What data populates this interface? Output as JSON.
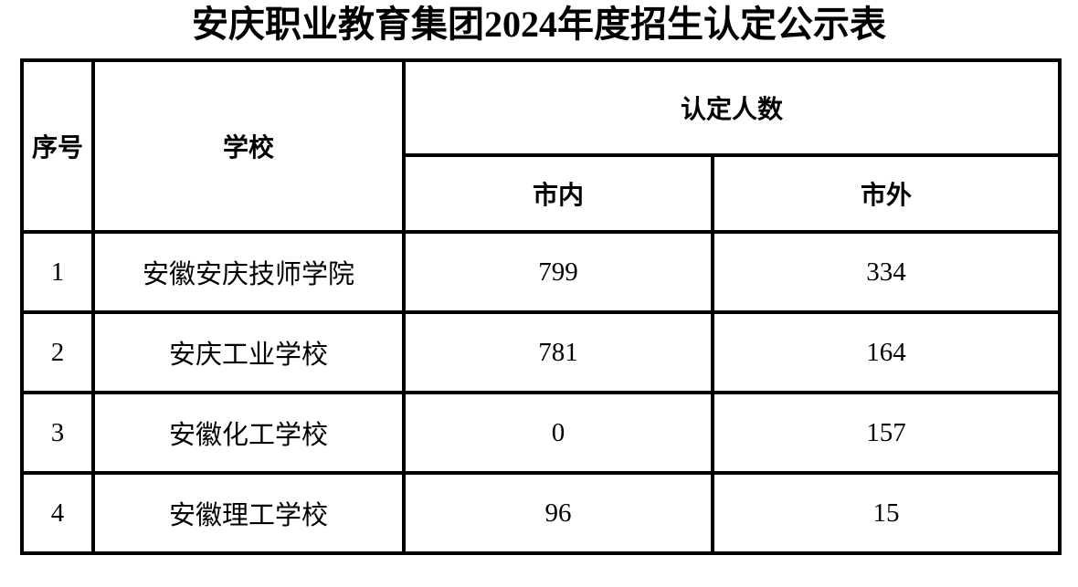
{
  "page_title": "安庆职业教育集团2024年度招生认定公示表",
  "table": {
    "headers": {
      "no": "序号",
      "school": "学校",
      "recognized_count": "认定人数",
      "in_city": "市内",
      "out_city": "市外"
    },
    "rows": [
      {
        "no": "1",
        "school": "安徽安庆技师学院",
        "in_city": "799",
        "out_city": "334"
      },
      {
        "no": "2",
        "school": "安庆工业学校",
        "in_city": "781",
        "out_city": "164"
      },
      {
        "no": "3",
        "school": "安徽化工学校",
        "in_city": "0",
        "out_city": "157"
      },
      {
        "no": "4",
        "school": "安徽理工学校",
        "in_city": "96",
        "out_city": "15"
      }
    ]
  },
  "colors": {
    "border": "#000000",
    "background": "#ffffff",
    "text": "#000000"
  }
}
